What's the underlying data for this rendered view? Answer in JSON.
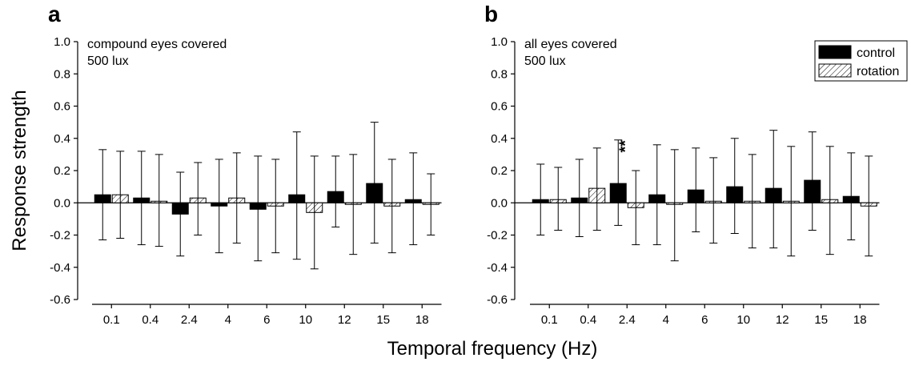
{
  "figure": {
    "ylabel": "Response strength",
    "xlabel": "Temporal frequency (Hz)"
  },
  "legend": {
    "position": "top-right of panel b",
    "items": [
      {
        "label": "control",
        "fill": "solid-black"
      },
      {
        "label": "rotation",
        "fill": "hatched"
      }
    ]
  },
  "colors": {
    "control": "#000000",
    "rotation_hatch": "#000000",
    "background": "#ffffff"
  },
  "chart_data": [
    {
      "type": "bar",
      "panel": "a",
      "annotation": [
        "compound eyes covered",
        "500 lux"
      ],
      "categories": [
        "0.1",
        "0.4",
        "2.4",
        "4",
        "6",
        "10",
        "12",
        "15",
        "18"
      ],
      "ylim": [
        -0.6,
        1.0
      ],
      "yticks": [
        "1.0",
        "0.8",
        "0.6",
        "0.4",
        "0.2",
        "0.0",
        "-0.2",
        "-0.4",
        "-0.6"
      ],
      "grid": false,
      "series": [
        {
          "name": "control",
          "values": [
            0.05,
            0.03,
            -0.07,
            -0.02,
            -0.04,
            0.05,
            0.07,
            0.12,
            0.02
          ],
          "err_high": [
            0.33,
            0.32,
            0.19,
            0.27,
            0.29,
            0.44,
            0.29,
            0.5,
            0.31
          ],
          "err_low": [
            -0.23,
            -0.26,
            -0.33,
            -0.31,
            -0.36,
            -0.35,
            -0.15,
            -0.25,
            -0.26
          ]
        },
        {
          "name": "rotation",
          "values": [
            0.05,
            0.01,
            0.03,
            0.03,
            -0.02,
            -0.06,
            -0.01,
            -0.02,
            -0.01
          ],
          "err_high": [
            0.32,
            0.3,
            0.25,
            0.31,
            0.27,
            0.29,
            0.3,
            0.27,
            0.18
          ],
          "err_low": [
            -0.22,
            -0.27,
            -0.2,
            -0.25,
            -0.31,
            -0.41,
            -0.32,
            -0.31,
            -0.2
          ]
        }
      ],
      "significance": []
    },
    {
      "type": "bar",
      "panel": "b",
      "annotation": [
        "all eyes covered",
        "500 lux"
      ],
      "categories": [
        "0.1",
        "0.4",
        "2.4",
        "4",
        "6",
        "10",
        "12",
        "15",
        "18"
      ],
      "ylim": [
        -0.6,
        1.0
      ],
      "yticks": [
        "1.0",
        "0.8",
        "0.6",
        "0.4",
        "0.2",
        "0.0",
        "-0.2",
        "-0.4",
        "-0.6"
      ],
      "grid": false,
      "series": [
        {
          "name": "control",
          "values": [
            0.02,
            0.03,
            0.12,
            0.05,
            0.08,
            0.1,
            0.09,
            0.14,
            0.04
          ],
          "err_high": [
            0.24,
            0.27,
            0.39,
            0.36,
            0.34,
            0.4,
            0.45,
            0.44,
            0.31
          ],
          "err_low": [
            -0.2,
            -0.21,
            -0.14,
            -0.26,
            -0.18,
            -0.19,
            -0.28,
            -0.17,
            -0.23
          ]
        },
        {
          "name": "rotation",
          "values": [
            0.02,
            0.09,
            -0.03,
            -0.01,
            0.01,
            0.01,
            0.01,
            0.02,
            -0.02
          ],
          "err_high": [
            0.22,
            0.34,
            0.2,
            0.33,
            0.28,
            0.3,
            0.35,
            0.35,
            0.29
          ],
          "err_low": [
            -0.17,
            -0.17,
            -0.26,
            -0.36,
            -0.25,
            -0.28,
            -0.33,
            -0.32,
            -0.33
          ]
        }
      ],
      "significance": [
        {
          "category": "2.4",
          "label": "**"
        }
      ]
    }
  ]
}
